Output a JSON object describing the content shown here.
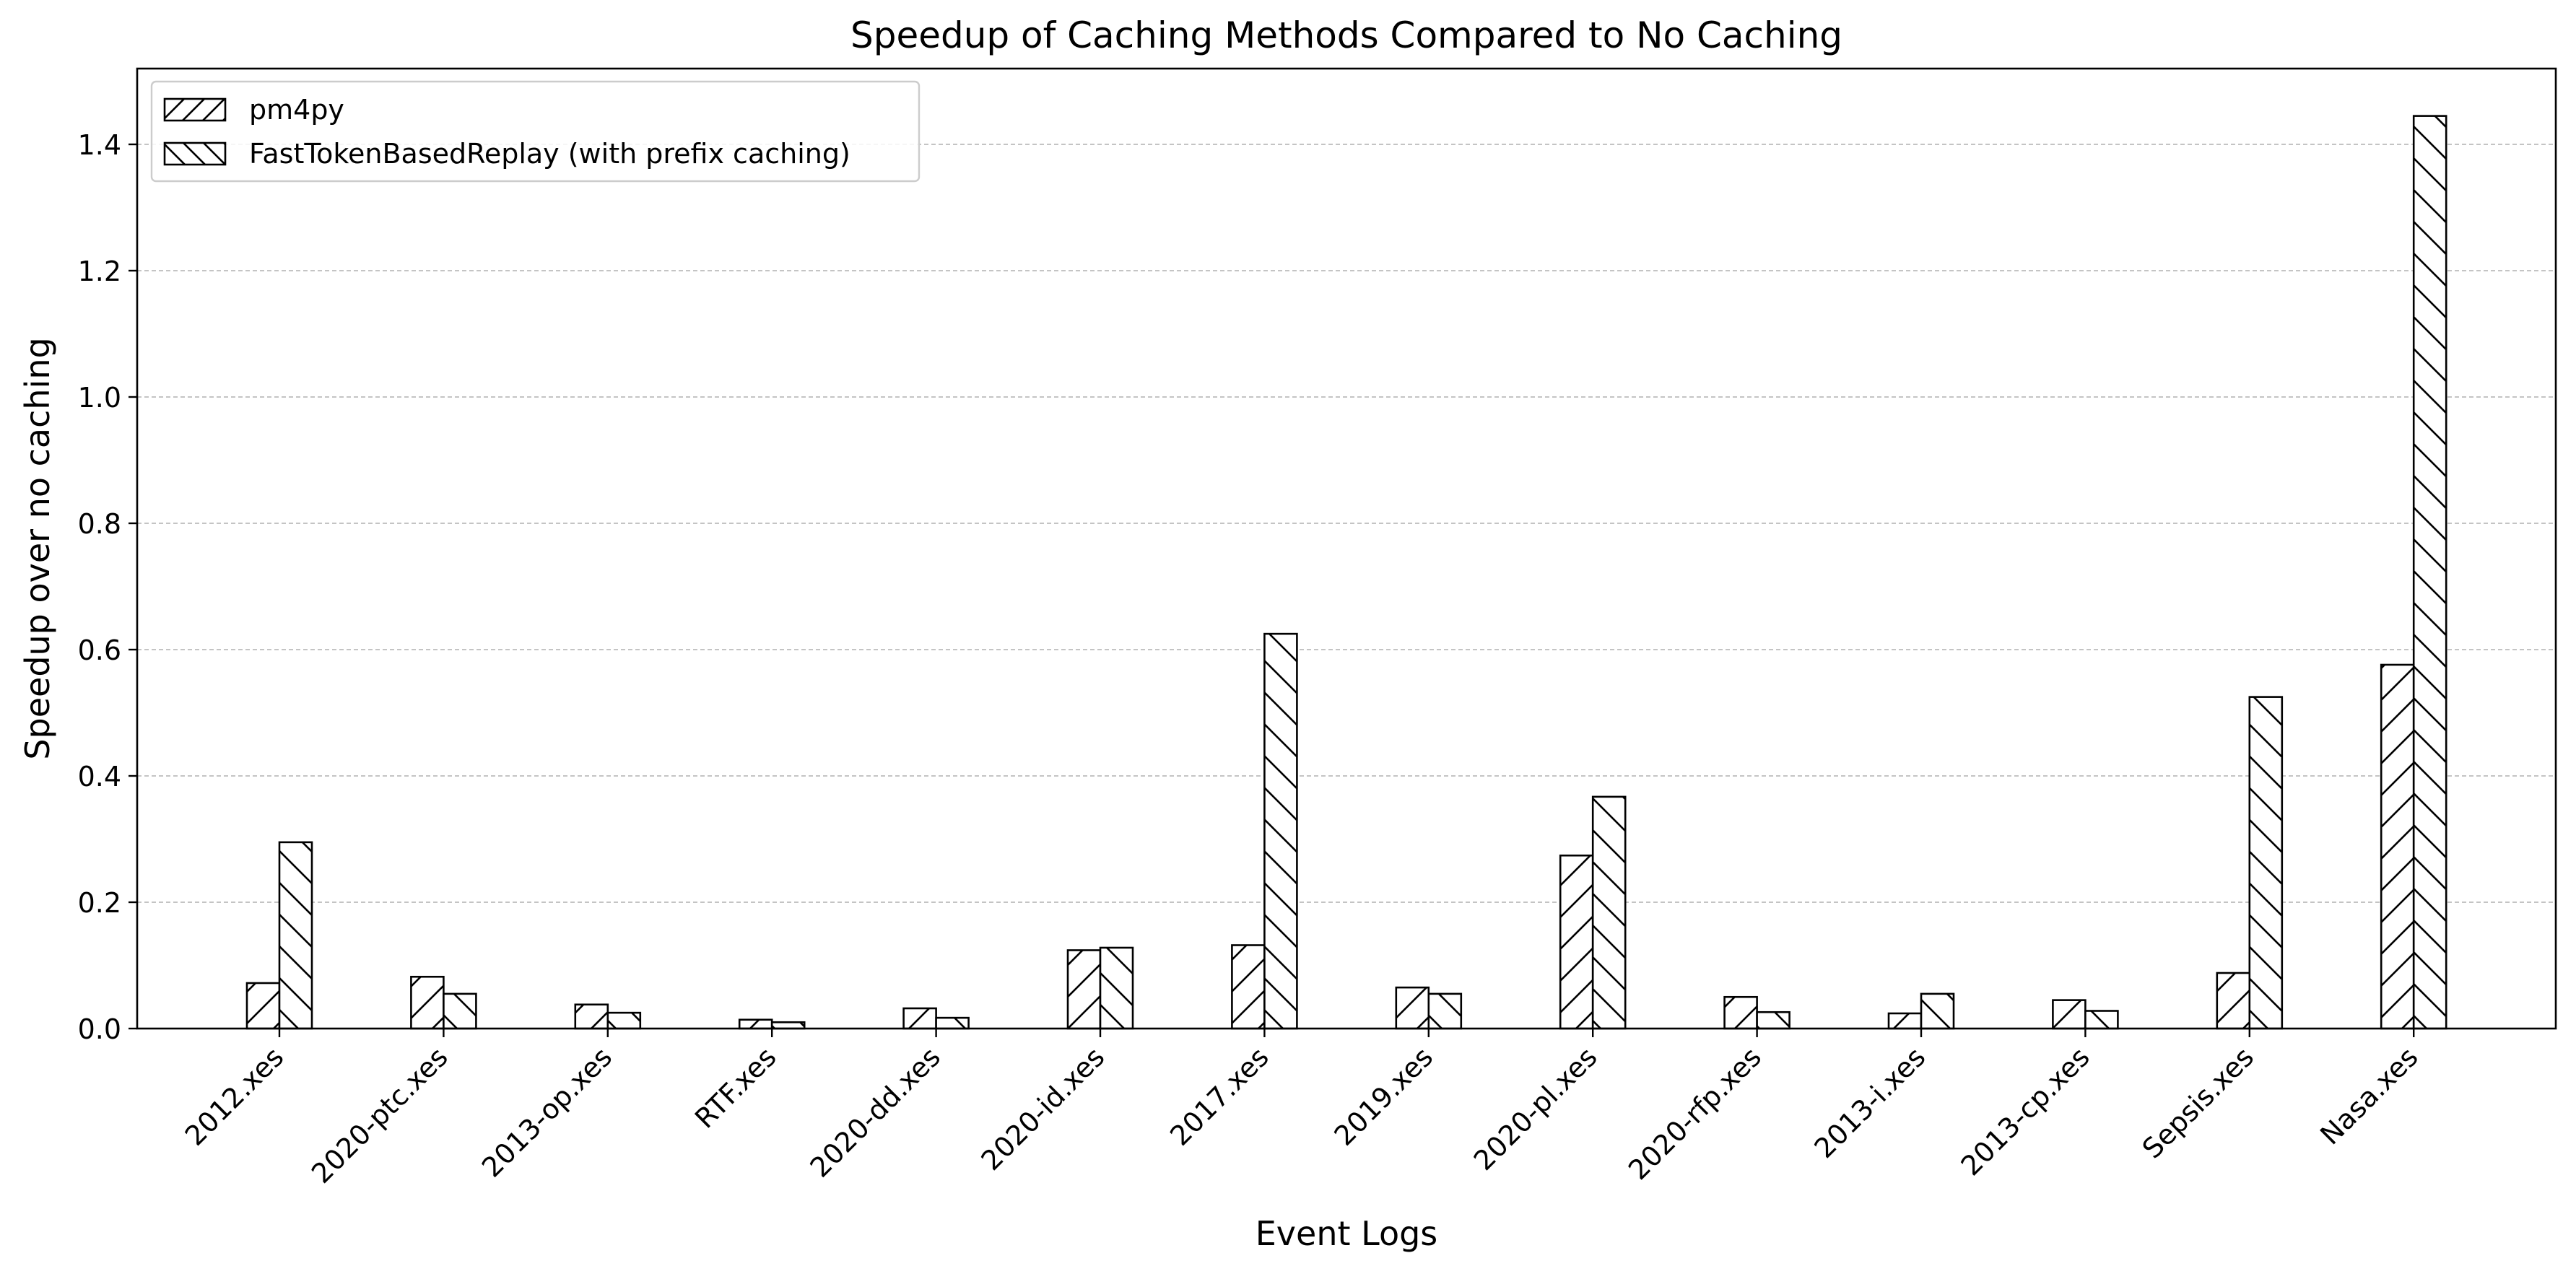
{
  "chart_data": {
    "type": "bar",
    "title": "Speedup of Caching Methods Compared to No Caching",
    "xlabel": "Event Logs",
    "ylabel": "Speedup over no caching",
    "categories": [
      "2012.xes",
      "2020-ptc.xes",
      "2013-op.xes",
      "RTF.xes",
      "2020-dd.xes",
      "2020-id.xes",
      "2017.xes",
      "2019.xes",
      "2020-pl.xes",
      "2020-rfp.xes",
      "2013-i.xes",
      "2013-cp.xes",
      "Sepsis.xes",
      "Nasa.xes"
    ],
    "series": [
      {
        "name": "pm4py",
        "hatch": "forward-diagonal",
        "values": [
          0.072,
          0.082,
          0.038,
          0.014,
          0.032,
          0.124,
          0.132,
          0.065,
          0.274,
          0.05,
          0.024,
          0.045,
          0.088,
          0.576
        ]
      },
      {
        "name": "FastTokenBasedReplay (with prefix caching)",
        "hatch": "back-diagonal",
        "values": [
          0.295,
          0.055,
          0.025,
          0.01,
          0.017,
          0.128,
          0.625,
          0.055,
          0.367,
          0.026,
          0.055,
          0.028,
          0.525,
          1.445
        ]
      }
    ],
    "ylim": [
      0,
      1.52
    ],
    "yticks": [
      0.0,
      0.2,
      0.4,
      0.6,
      0.8,
      1.0,
      1.2,
      1.4
    ],
    "ytick_labels": [
      "0.0",
      "0.2",
      "0.4",
      "0.6",
      "0.8",
      "1.0",
      "1.2",
      "1.4"
    ],
    "grid": "y-dashed",
    "legend_position": "top-left",
    "colors": {
      "bar_fill": "#ffffff",
      "bar_edge": "#000000",
      "grid": "#b0b0b0"
    }
  }
}
